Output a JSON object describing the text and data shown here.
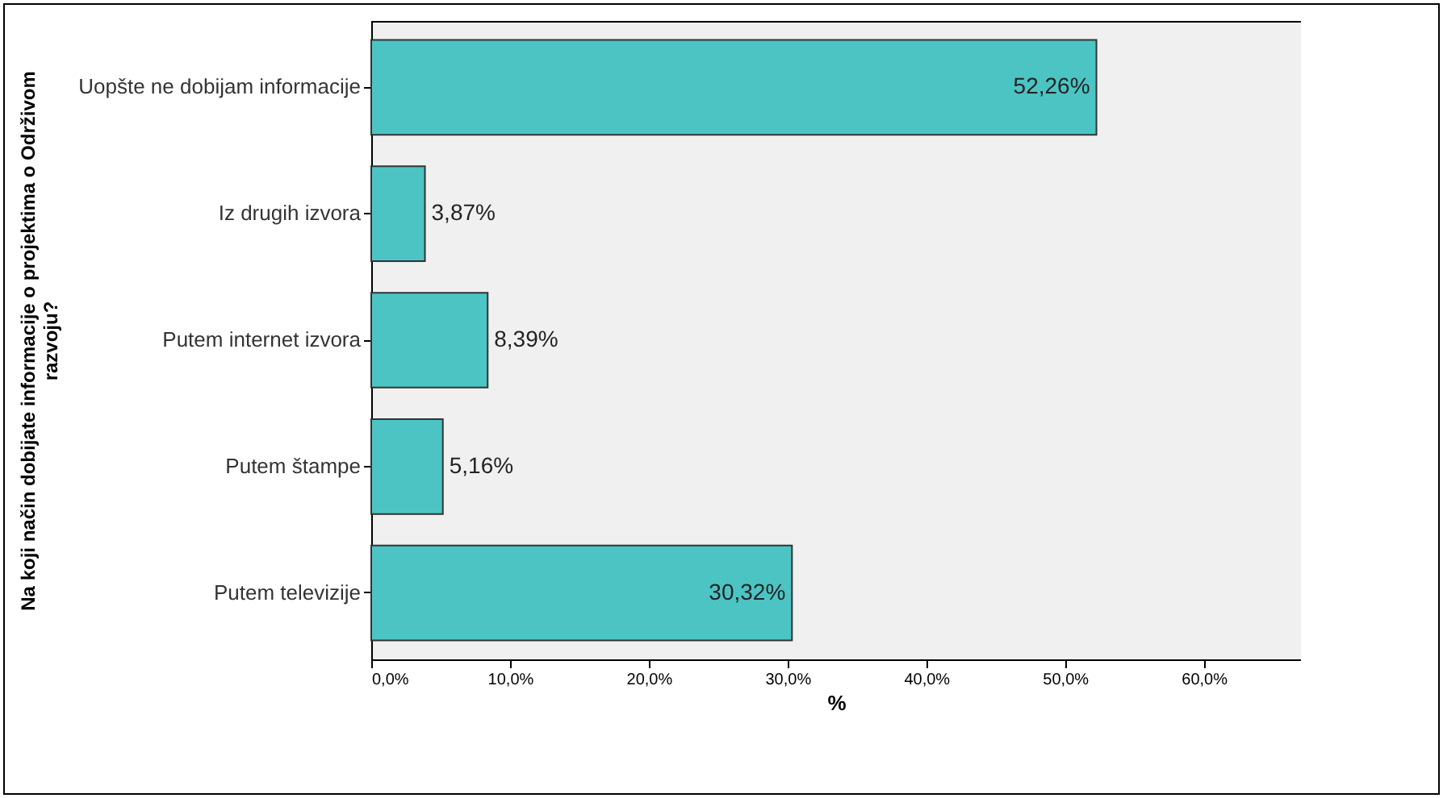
{
  "chart_data": {
    "type": "bar",
    "orientation": "horizontal",
    "ylabel": "Na koji način dobijate informacije o projektima o Održivom razvoju?",
    "xlabel": "%",
    "categories": [
      "Uopšte ne dobijam informacije",
      "Iz drugih izvora",
      "Putem internet izvora",
      "Putem štampe",
      "Putem televizije"
    ],
    "values": [
      52.26,
      3.87,
      8.39,
      5.16,
      30.32
    ],
    "value_labels": [
      "52,26%",
      "3,87%",
      "8,39%",
      "5,16%",
      "30,32%"
    ],
    "color": "#4cc4c4",
    "xlim": [
      0,
      67
    ],
    "xticks": [
      {
        "value": 0,
        "label": "0,0%"
      },
      {
        "value": 10,
        "label": "10,0%"
      },
      {
        "value": 20,
        "label": "20,0%"
      },
      {
        "value": 30,
        "label": "30,0%"
      },
      {
        "value": 40,
        "label": "40,0%"
      },
      {
        "value": 50,
        "label": "50,0%"
      },
      {
        "value": 60,
        "label": "60,0%"
      }
    ],
    "grid": false
  }
}
